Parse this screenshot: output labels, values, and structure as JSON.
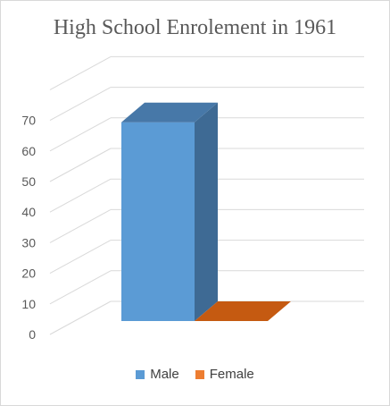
{
  "chart_data": {
    "type": "bar",
    "title": "High School Enrolement in 1961",
    "xlabel": "",
    "ylabel": "",
    "ylim": [
      0,
      70
    ],
    "yticks": [
      0,
      10,
      20,
      30,
      40,
      50,
      60,
      70
    ],
    "grid": true,
    "three_d": true,
    "legend_position": "bottom",
    "categories": [
      ""
    ],
    "series": [
      {
        "name": "Male",
        "values": [
          65
        ],
        "color": "#5b9bd5",
        "side_color": "#3e6a94",
        "top_color": "#4778a8"
      },
      {
        "name": "Female",
        "values": [
          0
        ],
        "color": "#ed7d31",
        "side_color": "#b85f22",
        "top_color": "#c55a11"
      }
    ]
  }
}
